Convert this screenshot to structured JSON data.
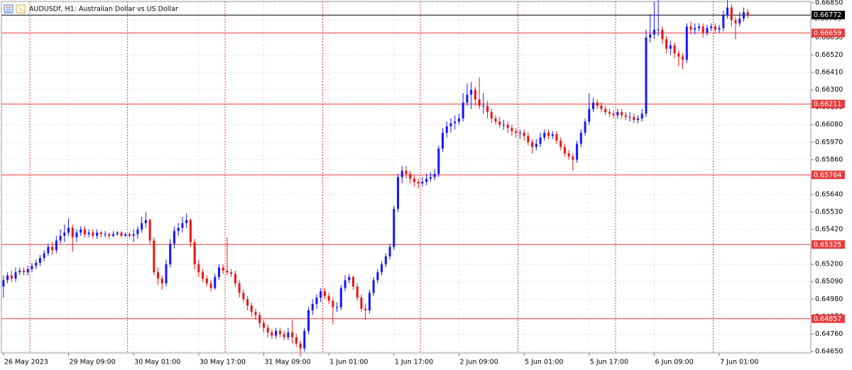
{
  "chart_data": {
    "type": "candlestick",
    "title": "AUDUSDf, H1:  Australian Dollar vs US Dollar",
    "up_color": "#1414ff",
    "down_color": "#f01010",
    "level_color": "#e83c3c",
    "price_color": "#000000",
    "grid": true,
    "xlim": [
      -0.5,
      198.5
    ],
    "ylim": [
      0.64641,
      0.66858
    ],
    "yticks": [
      {
        "value": 0.6685,
        "label": "0.66850"
      },
      {
        "value": 0.6674,
        "label": "0.66740"
      },
      {
        "value": 0.6663,
        "label": "0.66630"
      },
      {
        "value": 0.6652,
        "label": "0.66520"
      },
      {
        "value": 0.6641,
        "label": "0.66410"
      },
      {
        "value": 0.663,
        "label": "0.66300"
      },
      {
        "value": 0.6619,
        "label": "0.66190"
      },
      {
        "value": 0.6608,
        "label": "0.66080"
      },
      {
        "value": 0.6597,
        "label": "0.65970"
      },
      {
        "value": 0.6586,
        "label": "0.65860"
      },
      {
        "value": 0.6575,
        "label": "0.65750"
      },
      {
        "value": 0.6564,
        "label": "0.65640"
      },
      {
        "value": 0.6553,
        "label": "0.65530"
      },
      {
        "value": 0.6542,
        "label": "0.65420"
      },
      {
        "value": 0.6531,
        "label": "0.65310"
      },
      {
        "value": 0.652,
        "label": "0.65200"
      },
      {
        "value": 0.6509,
        "label": "0.65090"
      },
      {
        "value": 0.6498,
        "label": "0.64980"
      },
      {
        "value": 0.6487,
        "label": "0.64870"
      },
      {
        "value": 0.6476,
        "label": "0.64760"
      },
      {
        "value": 0.6465,
        "label": "0.64650"
      }
    ],
    "xticks": [
      {
        "value": 0,
        "label": "26 May 2023"
      },
      {
        "value": 16,
        "label": "29 May 09:00"
      },
      {
        "value": 32,
        "label": "30 May 01:00"
      },
      {
        "value": 48,
        "label": "30 May 17:00"
      },
      {
        "value": 64,
        "label": "31 May 09:00"
      },
      {
        "value": 80,
        "label": "1 Jun 01:00"
      },
      {
        "value": 96,
        "label": "1 Jun 17:00"
      },
      {
        "value": 112,
        "label": "2 Jun 09:00"
      },
      {
        "value": 128,
        "label": "5 Jun 01:00"
      },
      {
        "value": 144,
        "label": "5 Jun 17:00"
      },
      {
        "value": 160,
        "label": "6 Jun 09:00"
      },
      {
        "value": 176,
        "label": "7 Jun 01:00"
      }
    ],
    "separators": [
      7,
      31,
      55,
      79,
      103,
      127,
      151,
      175
    ],
    "levels": [
      0.66659,
      0.66211,
      0.65764,
      0.65325,
      0.64857
    ],
    "ask": 0.66749,
    "price": 0.66772,
    "ohlc": [
      [
        0.6506,
        0.6513,
        0.6499,
        0.651
      ],
      [
        0.651,
        0.6515,
        0.6508,
        0.6513
      ],
      [
        0.6513,
        0.6516,
        0.6509,
        0.6511
      ],
      [
        0.6511,
        0.6518,
        0.6509,
        0.6515
      ],
      [
        0.6515,
        0.6518,
        0.6513,
        0.6516
      ],
      [
        0.6516,
        0.6518,
        0.6513,
        0.6515
      ],
      [
        0.6515,
        0.6519,
        0.6513,
        0.6517
      ],
      [
        0.6517,
        0.6521,
        0.6515,
        0.6519
      ],
      [
        0.6519,
        0.6523,
        0.6517,
        0.6521
      ],
      [
        0.6521,
        0.6526,
        0.6519,
        0.6524
      ],
      [
        0.6524,
        0.6529,
        0.6522,
        0.6527
      ],
      [
        0.6527,
        0.6533,
        0.6525,
        0.6531
      ],
      [
        0.6531,
        0.6534,
        0.6526,
        0.6529
      ],
      [
        0.6529,
        0.6538,
        0.6527,
        0.6535
      ],
      [
        0.6535,
        0.6542,
        0.6533,
        0.6538
      ],
      [
        0.6538,
        0.6545,
        0.6534,
        0.654
      ],
      [
        0.654,
        0.6549,
        0.6538,
        0.6543
      ],
      [
        0.6543,
        0.6545,
        0.6528,
        0.6537
      ],
      [
        0.6537,
        0.6542,
        0.6534,
        0.654
      ],
      [
        0.654,
        0.6544,
        0.6538,
        0.6542
      ],
      [
        0.6542,
        0.6544,
        0.6537,
        0.6539
      ],
      [
        0.6539,
        0.6542,
        0.6537,
        0.654
      ],
      [
        0.654,
        0.6542,
        0.6536,
        0.6538
      ],
      [
        0.6538,
        0.6542,
        0.6536,
        0.654
      ],
      [
        0.654,
        0.6541,
        0.6537,
        0.6539
      ],
      [
        0.6539,
        0.6541,
        0.6537,
        0.6539
      ],
      [
        0.6539,
        0.654,
        0.6536,
        0.6538
      ],
      [
        0.6538,
        0.6541,
        0.6537,
        0.6539
      ],
      [
        0.6539,
        0.6541,
        0.6538,
        0.654
      ],
      [
        0.654,
        0.6541,
        0.6537,
        0.6538
      ],
      [
        0.6538,
        0.654,
        0.6537,
        0.6539
      ],
      [
        0.6539,
        0.654,
        0.6537,
        0.6538
      ],
      [
        0.6538,
        0.6542,
        0.6534,
        0.6539
      ],
      [
        0.6539,
        0.6544,
        0.6536,
        0.6542
      ],
      [
        0.6542,
        0.655,
        0.654,
        0.6546
      ],
      [
        0.6546,
        0.6553,
        0.6543,
        0.6548
      ],
      [
        0.6548,
        0.6549,
        0.6533,
        0.6535
      ],
      [
        0.6535,
        0.6537,
        0.6513,
        0.6515
      ],
      [
        0.6515,
        0.6518,
        0.6507,
        0.6511
      ],
      [
        0.6511,
        0.6513,
        0.6504,
        0.6508
      ],
      [
        0.6508,
        0.6523,
        0.6506,
        0.652
      ],
      [
        0.652,
        0.6536,
        0.6518,
        0.6533
      ],
      [
        0.6533,
        0.6544,
        0.653,
        0.6541
      ],
      [
        0.6541,
        0.6546,
        0.6538,
        0.6543
      ],
      [
        0.6543,
        0.655,
        0.654,
        0.6546
      ],
      [
        0.6546,
        0.6552,
        0.6543,
        0.6548
      ],
      [
        0.6548,
        0.6549,
        0.6531,
        0.6534
      ],
      [
        0.6534,
        0.6536,
        0.6517,
        0.652
      ],
      [
        0.652,
        0.6523,
        0.6512,
        0.6515
      ],
      [
        0.6515,
        0.6517,
        0.6509,
        0.6511
      ],
      [
        0.6511,
        0.6513,
        0.6506,
        0.6508
      ],
      [
        0.6508,
        0.651,
        0.6503,
        0.6505
      ],
      [
        0.6505,
        0.6514,
        0.6504,
        0.6512
      ],
      [
        0.6512,
        0.652,
        0.651,
        0.6518
      ],
      [
        0.6518,
        0.652,
        0.6514,
        0.6516
      ],
      [
        0.6516,
        0.6537,
        0.6513,
        0.6515
      ],
      [
        0.6515,
        0.6517,
        0.6512,
        0.6514
      ],
      [
        0.6514,
        0.6516,
        0.6506,
        0.6508
      ],
      [
        0.6508,
        0.651,
        0.6499,
        0.6502
      ],
      [
        0.6502,
        0.6504,
        0.6496,
        0.6498
      ],
      [
        0.6498,
        0.65,
        0.6491,
        0.6494
      ],
      [
        0.6494,
        0.6496,
        0.6487,
        0.649
      ],
      [
        0.649,
        0.6492,
        0.6485,
        0.6488
      ],
      [
        0.6488,
        0.649,
        0.648,
        0.6483
      ],
      [
        0.6483,
        0.6485,
        0.6477,
        0.648
      ],
      [
        0.648,
        0.6482,
        0.6474,
        0.6477
      ],
      [
        0.6477,
        0.6479,
        0.6473,
        0.6475
      ],
      [
        0.6475,
        0.648,
        0.6473,
        0.6478
      ],
      [
        0.6478,
        0.648,
        0.6474,
        0.6476
      ],
      [
        0.6476,
        0.6478,
        0.6472,
        0.6474
      ],
      [
        0.6474,
        0.648,
        0.6472,
        0.6477
      ],
      [
        0.6477,
        0.6485,
        0.647,
        0.6474
      ],
      [
        0.6474,
        0.6476,
        0.6468,
        0.647
      ],
      [
        0.647,
        0.6472,
        0.6462,
        0.6467
      ],
      [
        0.6467,
        0.648,
        0.6465,
        0.6478
      ],
      [
        0.6478,
        0.6493,
        0.6476,
        0.6491
      ],
      [
        0.6491,
        0.6498,
        0.6488,
        0.6495
      ],
      [
        0.6495,
        0.6501,
        0.6492,
        0.6499
      ],
      [
        0.6499,
        0.6505,
        0.6496,
        0.6503
      ],
      [
        0.6503,
        0.6505,
        0.6498,
        0.65
      ],
      [
        0.65,
        0.6502,
        0.6495,
        0.6497
      ],
      [
        0.6497,
        0.6499,
        0.6482,
        0.6493
      ],
      [
        0.6493,
        0.6496,
        0.649,
        0.6493
      ],
      [
        0.6493,
        0.6507,
        0.6491,
        0.6505
      ],
      [
        0.6505,
        0.6513,
        0.6503,
        0.651
      ],
      [
        0.651,
        0.6514,
        0.6508,
        0.6512
      ],
      [
        0.6512,
        0.6513,
        0.6504,
        0.6506
      ],
      [
        0.6506,
        0.6508,
        0.6497,
        0.6499
      ],
      [
        0.6499,
        0.6501,
        0.649,
        0.6492
      ],
      [
        0.6492,
        0.6495,
        0.6485,
        0.6491
      ],
      [
        0.6491,
        0.6504,
        0.6489,
        0.6502
      ],
      [
        0.6502,
        0.6512,
        0.65,
        0.651
      ],
      [
        0.651,
        0.6517,
        0.6508,
        0.6515
      ],
      [
        0.6515,
        0.6522,
        0.6513,
        0.652
      ],
      [
        0.652,
        0.6527,
        0.6518,
        0.6525
      ],
      [
        0.6525,
        0.6533,
        0.6523,
        0.6531
      ],
      [
        0.6531,
        0.6557,
        0.6529,
        0.6555
      ],
      [
        0.6555,
        0.6577,
        0.6553,
        0.6575
      ],
      [
        0.6575,
        0.6582,
        0.6571,
        0.6579
      ],
      [
        0.6579,
        0.6582,
        0.6574,
        0.6577
      ],
      [
        0.6577,
        0.6579,
        0.6571,
        0.6574
      ],
      [
        0.6574,
        0.6576,
        0.6569,
        0.6572
      ],
      [
        0.6572,
        0.6574,
        0.6568,
        0.6571
      ],
      [
        0.6571,
        0.6575,
        0.6569,
        0.6572
      ],
      [
        0.6572,
        0.6577,
        0.657,
        0.6574
      ],
      [
        0.6574,
        0.6578,
        0.6572,
        0.6575
      ],
      [
        0.6575,
        0.658,
        0.6573,
        0.6577
      ],
      [
        0.6577,
        0.6595,
        0.6575,
        0.6593
      ],
      [
        0.6593,
        0.6606,
        0.6591,
        0.6603
      ],
      [
        0.6603,
        0.661,
        0.66,
        0.6607
      ],
      [
        0.6607,
        0.6612,
        0.6603,
        0.6609
      ],
      [
        0.6609,
        0.6614,
        0.6605,
        0.661
      ],
      [
        0.661,
        0.6615,
        0.6608,
        0.6612
      ],
      [
        0.6612,
        0.6628,
        0.661,
        0.6622
      ],
      [
        0.6622,
        0.6634,
        0.662,
        0.6627
      ],
      [
        0.6627,
        0.6635,
        0.6618,
        0.663
      ],
      [
        0.663,
        0.6632,
        0.662,
        0.6624
      ],
      [
        0.6624,
        0.6638,
        0.6618,
        0.662
      ],
      [
        0.662,
        0.6628,
        0.6615,
        0.662
      ],
      [
        0.662,
        0.6623,
        0.6612,
        0.6616
      ],
      [
        0.6616,
        0.6618,
        0.6609,
        0.6612
      ],
      [
        0.6612,
        0.6614,
        0.6608,
        0.661
      ],
      [
        0.661,
        0.6613,
        0.6606,
        0.6608
      ],
      [
        0.6608,
        0.6611,
        0.6605,
        0.6608
      ],
      [
        0.6608,
        0.661,
        0.6603,
        0.6606
      ],
      [
        0.6606,
        0.6608,
        0.6601,
        0.6604
      ],
      [
        0.6604,
        0.6606,
        0.66,
        0.6603
      ],
      [
        0.6603,
        0.6605,
        0.6599,
        0.6603
      ],
      [
        0.6603,
        0.6605,
        0.6598,
        0.6601
      ],
      [
        0.6601,
        0.6603,
        0.6595,
        0.6597
      ],
      [
        0.6597,
        0.6599,
        0.659,
        0.6594
      ],
      [
        0.6594,
        0.6599,
        0.6592,
        0.6596
      ],
      [
        0.6596,
        0.6603,
        0.6594,
        0.66
      ],
      [
        0.66,
        0.6605,
        0.6598,
        0.6603
      ],
      [
        0.6603,
        0.6605,
        0.6599,
        0.6601
      ],
      [
        0.6601,
        0.6604,
        0.6599,
        0.6602
      ],
      [
        0.6602,
        0.6604,
        0.6596,
        0.6598
      ],
      [
        0.6598,
        0.66,
        0.6592,
        0.6594
      ],
      [
        0.6594,
        0.6596,
        0.6588,
        0.659
      ],
      [
        0.659,
        0.6592,
        0.6586,
        0.6588
      ],
      [
        0.6588,
        0.659,
        0.6579,
        0.6586
      ],
      [
        0.6586,
        0.6598,
        0.6584,
        0.6596
      ],
      [
        0.6596,
        0.6605,
        0.6594,
        0.6603
      ],
      [
        0.6603,
        0.6612,
        0.6601,
        0.661
      ],
      [
        0.661,
        0.6628,
        0.6608,
        0.6618
      ],
      [
        0.6618,
        0.6625,
        0.6616,
        0.6622
      ],
      [
        0.6622,
        0.6624,
        0.6618,
        0.662
      ],
      [
        0.662,
        0.6622,
        0.6616,
        0.6618
      ],
      [
        0.6618,
        0.662,
        0.6614,
        0.6616
      ],
      [
        0.6616,
        0.6618,
        0.6613,
        0.6615
      ],
      [
        0.6615,
        0.6617,
        0.6612,
        0.6614
      ],
      [
        0.6614,
        0.6618,
        0.6612,
        0.6616
      ],
      [
        0.6616,
        0.6618,
        0.6612,
        0.6614
      ],
      [
        0.6614,
        0.6616,
        0.6611,
        0.6613
      ],
      [
        0.6613,
        0.6616,
        0.661,
        0.6613
      ],
      [
        0.6613,
        0.6615,
        0.6609,
        0.6611
      ],
      [
        0.6611,
        0.6614,
        0.6609,
        0.6612
      ],
      [
        0.6612,
        0.6618,
        0.661,
        0.6615
      ],
      [
        0.6615,
        0.6668,
        0.6613,
        0.6663
      ],
      [
        0.6663,
        0.6678,
        0.666,
        0.6665
      ],
      [
        0.6665,
        0.6686,
        0.6662,
        0.6668
      ],
      [
        0.6668,
        0.6687,
        0.6664,
        0.6668
      ],
      [
        0.6668,
        0.667,
        0.6659,
        0.6662
      ],
      [
        0.6662,
        0.6664,
        0.6653,
        0.6656
      ],
      [
        0.6656,
        0.6661,
        0.6652,
        0.6658
      ],
      [
        0.6658,
        0.666,
        0.665,
        0.6653
      ],
      [
        0.6653,
        0.6655,
        0.6645,
        0.6651
      ],
      [
        0.6651,
        0.6653,
        0.6643,
        0.6649
      ],
      [
        0.6649,
        0.6672,
        0.6647,
        0.667
      ],
      [
        0.667,
        0.6673,
        0.6665,
        0.6668
      ],
      [
        0.6668,
        0.6672,
        0.6665,
        0.6669
      ],
      [
        0.6669,
        0.6672,
        0.6667,
        0.667
      ],
      [
        0.667,
        0.6672,
        0.6663,
        0.6666
      ],
      [
        0.6666,
        0.6671,
        0.6664,
        0.6669
      ],
      [
        0.6669,
        0.6672,
        0.6667,
        0.667
      ],
      [
        0.667,
        0.6672,
        0.6666,
        0.6668
      ],
      [
        0.6668,
        0.6671,
        0.6666,
        0.6669
      ],
      [
        0.6669,
        0.668,
        0.6667,
        0.6677
      ],
      [
        0.6677,
        0.6689,
        0.6675,
        0.6682
      ],
      [
        0.6682,
        0.6684,
        0.667,
        0.6674
      ],
      [
        0.6674,
        0.6676,
        0.6662,
        0.6672
      ],
      [
        0.6672,
        0.6679,
        0.667,
        0.6675
      ],
      [
        0.6675,
        0.6682,
        0.6673,
        0.6679
      ],
      [
        0.6679,
        0.6681,
        0.6675,
        0.66772
      ]
    ]
  }
}
